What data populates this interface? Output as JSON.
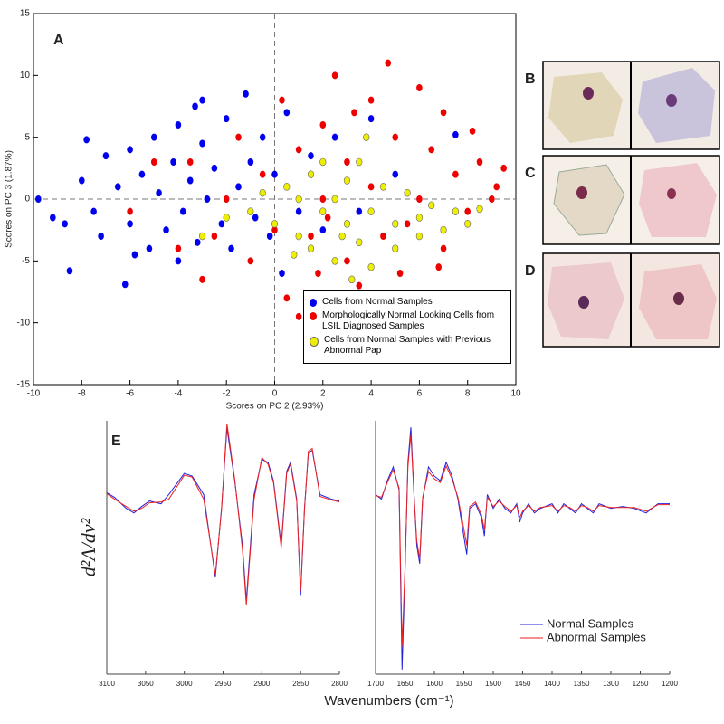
{
  "chart_data": [
    {
      "type": "scatter",
      "title": "A",
      "xlabel": "Scores on PC 2 (2.93%)",
      "ylabel": "Scores on PC 3 (1.87%)",
      "xlim": [
        -10,
        10
      ],
      "ylim": [
        -15,
        15
      ],
      "xticks": [
        -10,
        -8,
        -6,
        -4,
        -2,
        0,
        2,
        4,
        6,
        8,
        10
      ],
      "yticks": [
        -15,
        -10,
        -5,
        0,
        5,
        10,
        15
      ],
      "zero_lines": true,
      "legend": "lower right",
      "series": [
        {
          "name": "Cells from Normal Samples",
          "color": "#0000ee",
          "x": [
            -9.8,
            -9.2,
            -8.7,
            -8.5,
            -8,
            -7.5,
            -7,
            -7.2,
            -6.5,
            -6.2,
            -6,
            -6,
            -5.5,
            -5.2,
            -5,
            -4.8,
            -4.5,
            -4.2,
            -4,
            -3.8,
            -3.5,
            -3.2,
            -3,
            -3,
            -2.8,
            -2.5,
            -2.2,
            -2,
            -1.8,
            -1.5,
            -1.2,
            -1,
            -0.8,
            -0.5,
            -0.2,
            0,
            0.3,
            0.5,
            1,
            1.5,
            2,
            2.5,
            3.5,
            4,
            5,
            7.5,
            -4,
            -5.8,
            -7.8,
            -3.3
          ],
          "values": [
            0,
            -1.5,
            -2,
            -5.8,
            1.5,
            -1,
            3.5,
            -3,
            1,
            -6.9,
            4,
            -2,
            2,
            -4,
            5,
            0.5,
            -2.5,
            3,
            6,
            -1,
            1.5,
            -3.5,
            4.5,
            8,
            0,
            2.5,
            -2,
            6.5,
            -4,
            1,
            8.5,
            3,
            -1.5,
            5,
            -3,
            2,
            -6,
            7,
            -1,
            3.5,
            -2.5,
            5,
            -1,
            6.5,
            2,
            5.2,
            -5,
            -4.5,
            4.8,
            7.5
          ]
        },
        {
          "name": "Morphologically Normal Looking Cells from LSIL Diagnosed Samples",
          "color": "#ee0000",
          "x": [
            -6,
            -5,
            -4,
            -3,
            -2,
            -1.5,
            -1,
            -0.5,
            0,
            0.3,
            0.5,
            1,
            1,
            1.5,
            2,
            2,
            2.5,
            3,
            3,
            3.5,
            4,
            4,
            4.5,
            4.7,
            5,
            5.5,
            6,
            6,
            6.5,
            7,
            7,
            7.5,
            8,
            8.5,
            9,
            9.2,
            9.5,
            -2.5,
            -3.5,
            1.8,
            5.2,
            6.8,
            3.3,
            2.2,
            8.2
          ],
          "values": [
            -1,
            3,
            -4,
            -6.5,
            0,
            5,
            -5,
            2,
            -2.5,
            8,
            -8,
            4,
            -9.5,
            -3,
            6,
            0,
            10,
            -5,
            3,
            -7,
            8,
            1,
            -3,
            11,
            5,
            -2,
            9,
            0,
            4,
            -4,
            7,
            2,
            -1,
            3,
            0,
            1,
            2.5,
            -3,
            3,
            -6,
            -6,
            -5.5,
            7,
            -1.5,
            5.5
          ]
        },
        {
          "name": "Cells from Normal Samples with Previous Abnormal Pap",
          "color": "#eeee00",
          "x": [
            -1,
            -0.5,
            0,
            0.5,
            1,
            1,
            1.5,
            1.5,
            2,
            2,
            2.5,
            2.5,
            3,
            3,
            3.5,
            3.5,
            4,
            4,
            4.5,
            5,
            5,
            5.5,
            6,
            6,
            6.5,
            7,
            7.5,
            8,
            8.5,
            -2,
            -3,
            3.2,
            3.8,
            0.8,
            2.8
          ],
          "values": [
            -1,
            0.5,
            -2,
            1,
            -3,
            0,
            -4,
            2,
            -1,
            3,
            -5,
            0,
            -2,
            1.5,
            -3.5,
            3,
            -1,
            -5.5,
            1,
            -2,
            -4,
            0.5,
            -1.5,
            -3,
            -0.5,
            -2.5,
            -1,
            -2,
            -0.8,
            -1.5,
            -3,
            -6.5,
            5,
            -4.5,
            -3
          ]
        }
      ]
    },
    {
      "type": "line",
      "title": "E",
      "ylabel": "d²A/dν²",
      "xlabel": "Wavenumbers (cm⁻¹)",
      "x": [
        3100,
        3090,
        3075,
        3065,
        3055,
        3045,
        3030,
        3020,
        3000,
        2990,
        2975,
        2960,
        2952,
        2945,
        2935,
        2925,
        2920,
        2910,
        2900,
        2892,
        2885,
        2875,
        2868,
        2863,
        2855,
        2850,
        2845,
        2840,
        2835,
        2825,
        2810,
        2800
      ],
      "xlim": [
        3100,
        2800
      ],
      "xticks": [
        3100,
        3050,
        3000,
        2950,
        2900,
        2850,
        2800
      ],
      "ylim": [
        -1.4,
        1.35
      ],
      "series": [
        {
          "color": "#2222dd",
          "values": [
            0.57,
            0.52,
            0.4,
            0.35,
            0.42,
            0.48,
            0.45,
            0.55,
            0.78,
            0.75,
            0.55,
            -0.35,
            0.4,
            1.27,
            0.7,
            0.0,
            -0.6,
            0.55,
            0.93,
            0.9,
            0.7,
            0.0,
            0.8,
            0.9,
            0.5,
            -0.55,
            0.4,
            1.0,
            1.03,
            0.55,
            0.5,
            0.48
          ]
        },
        {
          "color": "#ee2222",
          "values": [
            0.56,
            0.5,
            0.42,
            0.37,
            0.4,
            0.46,
            0.47,
            0.5,
            0.76,
            0.74,
            0.5,
            -0.32,
            0.38,
            1.32,
            0.72,
            -0.05,
            -0.65,
            0.5,
            0.95,
            0.88,
            0.68,
            -0.03,
            0.78,
            0.88,
            0.48,
            -0.5,
            0.38,
            1.02,
            1.05,
            0.53,
            0.49,
            0.47
          ]
        }
      ]
    },
    {
      "type": "line",
      "x": [
        1700,
        1690,
        1680,
        1670,
        1660,
        1655,
        1650,
        1645,
        1640,
        1635,
        1630,
        1625,
        1620,
        1610,
        1600,
        1590,
        1580,
        1570,
        1560,
        1550,
        1545,
        1540,
        1530,
        1520,
        1515,
        1510,
        1500,
        1490,
        1480,
        1470,
        1460,
        1455,
        1450,
        1440,
        1430,
        1420,
        1400,
        1390,
        1380,
        1370,
        1360,
        1350,
        1340,
        1330,
        1320,
        1300,
        1280,
        1260,
        1240,
        1220,
        1200
      ],
      "xlim": [
        1700,
        1200
      ],
      "xticks": [
        1700,
        1650,
        1600,
        1550,
        1500,
        1450,
        1400,
        1350,
        1300,
        1250,
        1200
      ],
      "ylim": [
        -1.4,
        1.35
      ],
      "legend": "lower right",
      "series": [
        {
          "name": "Normal Samples",
          "color": "#2222dd",
          "values": [
            0.55,
            0.5,
            0.7,
            0.85,
            0.6,
            -1.35,
            -0.3,
            0.9,
            1.28,
            0.6,
            0.0,
            -0.2,
            0.5,
            0.85,
            0.75,
            0.7,
            0.9,
            0.75,
            0.5,
            0.1,
            -0.1,
            0.4,
            0.45,
            0.3,
            0.1,
            0.55,
            0.4,
            0.5,
            0.4,
            0.35,
            0.45,
            0.25,
            0.35,
            0.45,
            0.35,
            0.4,
            0.45,
            0.35,
            0.45,
            0.4,
            0.35,
            0.45,
            0.4,
            0.35,
            0.45,
            0.4,
            0.42,
            0.4,
            0.35,
            0.45,
            0.45
          ]
        },
        {
          "name": "Abnormal Samples",
          "color": "#ee2222",
          "values": [
            0.54,
            0.52,
            0.68,
            0.82,
            0.62,
            -1.1,
            -0.25,
            0.85,
            1.2,
            0.58,
            0.05,
            -0.15,
            0.52,
            0.8,
            0.72,
            0.68,
            0.86,
            0.72,
            0.52,
            0.18,
            0.0,
            0.42,
            0.47,
            0.33,
            0.17,
            0.52,
            0.42,
            0.48,
            0.42,
            0.37,
            0.43,
            0.3,
            0.37,
            0.43,
            0.37,
            0.41,
            0.43,
            0.37,
            0.43,
            0.41,
            0.37,
            0.43,
            0.41,
            0.37,
            0.43,
            0.41,
            0.41,
            0.41,
            0.37,
            0.44,
            0.44
          ]
        }
      ]
    }
  ],
  "photo_panels": [
    {
      "label": "B"
    },
    {
      "label": "C"
    },
    {
      "label": "D"
    }
  ]
}
